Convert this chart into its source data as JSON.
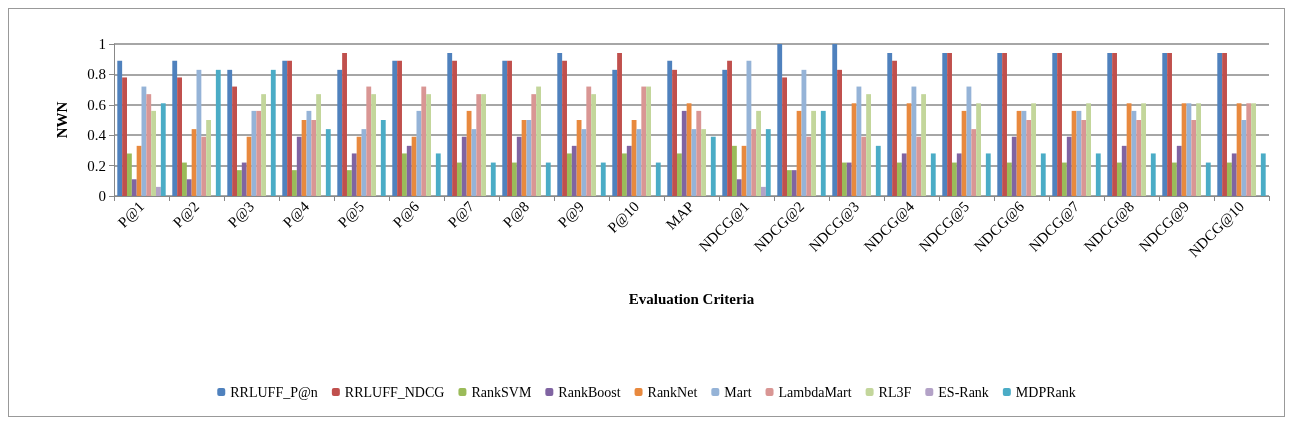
{
  "chart_data": {
    "type": "bar",
    "xlabel": "Evaluation Criteria",
    "ylabel": "NWN",
    "categories": [
      "P@1",
      "P@2",
      "P@3",
      "P@4",
      "P@5",
      "P@6",
      "P@7",
      "P@8",
      "P@9",
      "P@10",
      "MAP",
      "NDCG@1",
      "NDCG@2",
      "NDCG@3",
      "NDCG@4",
      "NDCG@5",
      "NDCG@6",
      "NDCG@7",
      "NDCG@8",
      "NDCG@9",
      "NDCG@10"
    ],
    "series": [
      {
        "name": "RRLUFF_P@n",
        "color": "#4f81bd",
        "values": [
          0.89,
          0.89,
          0.83,
          0.89,
          0.83,
          0.89,
          0.94,
          0.89,
          0.94,
          0.83,
          0.89,
          0.83,
          1,
          1,
          0.94,
          0.94,
          0.94,
          0.94,
          0.94,
          0.94,
          0.94
        ]
      },
      {
        "name": "RRLUFF_NDCG",
        "color": "#c0504d",
        "values": [
          0.78,
          0.78,
          0.72,
          0.89,
          0.94,
          0.89,
          0.89,
          0.89,
          0.89,
          0.94,
          0.83,
          0.89,
          0.78,
          0.83,
          0.89,
          0.94,
          0.94,
          0.94,
          0.94,
          0.94,
          0.94
        ]
      },
      {
        "name": "RankSVM",
        "color": "#9bbb59",
        "values": [
          0.28,
          0.22,
          0.17,
          0.17,
          0.17,
          0.28,
          0.22,
          0.22,
          0.28,
          0.28,
          0.28,
          0.33,
          0.17,
          0.22,
          0.22,
          0.22,
          0.22,
          0.22,
          0.22,
          0.22,
          0.22
        ]
      },
      {
        "name": "RankBoost",
        "color": "#8064a2",
        "values": [
          0.11,
          0.11,
          0.22,
          0.39,
          0.28,
          0.33,
          0.39,
          0.39,
          0.33,
          0.33,
          0.56,
          0.11,
          0.17,
          0.22,
          0.28,
          0.28,
          0.39,
          0.39,
          0.33,
          0.33,
          0.28
        ]
      },
      {
        "name": "RankNet",
        "color": "#e8893e",
        "values": [
          0.33,
          0.44,
          0.39,
          0.5,
          0.39,
          0.39,
          0.56,
          0.5,
          0.5,
          0.5,
          0.61,
          0.33,
          0.56,
          0.61,
          0.61,
          0.56,
          0.56,
          0.56,
          0.61,
          0.61,
          0.61
        ]
      },
      {
        "name": "Mart",
        "color": "#95b3d7",
        "values": [
          0.72,
          0.83,
          0.56,
          0.56,
          0.44,
          0.56,
          0.44,
          0.5,
          0.44,
          0.44,
          0.44,
          0.89,
          0.83,
          0.72,
          0.72,
          0.72,
          0.56,
          0.56,
          0.56,
          0.61,
          0.5
        ]
      },
      {
        "name": "LambdaMart",
        "color": "#d99694",
        "values": [
          0.67,
          0.39,
          0.56,
          0.5,
          0.72,
          0.72,
          0.67,
          0.67,
          0.72,
          0.72,
          0.56,
          0.44,
          0.39,
          0.39,
          0.39,
          0.44,
          0.5,
          0.5,
          0.5,
          0.5,
          0.61
        ]
      },
      {
        "name": "RL3F",
        "color": "#c3d69b",
        "values": [
          0.56,
          0.5,
          0.67,
          0.67,
          0.67,
          0.67,
          0.67,
          0.72,
          0.67,
          0.72,
          0.44,
          0.56,
          0.56,
          0.67,
          0.67,
          0.61,
          0.61,
          0.61,
          0.61,
          0.61,
          0.61
        ]
      },
      {
        "name": "ES-Rank",
        "color": "#b3a2c7",
        "values": [
          0.06,
          0,
          0,
          0,
          0,
          0,
          0,
          0,
          0,
          0,
          0,
          0.06,
          0,
          0,
          0,
          0,
          0,
          0,
          0,
          0,
          0
        ]
      },
      {
        "name": "MDPRank",
        "color": "#4bacc6",
        "values": [
          0.61,
          0.83,
          0.83,
          0.44,
          0.5,
          0.28,
          0.22,
          0.22,
          0.22,
          0.22,
          0.39,
          0.44,
          0.56,
          0.33,
          0.28,
          0.28,
          0.28,
          0.28,
          0.28,
          0.22,
          0.28
        ]
      }
    ],
    "ylim": [
      0,
      1
    ],
    "yticks": [
      0,
      0.2,
      0.4,
      0.6,
      0.8,
      1
    ],
    "grid": "y",
    "legend": "bottom"
  }
}
